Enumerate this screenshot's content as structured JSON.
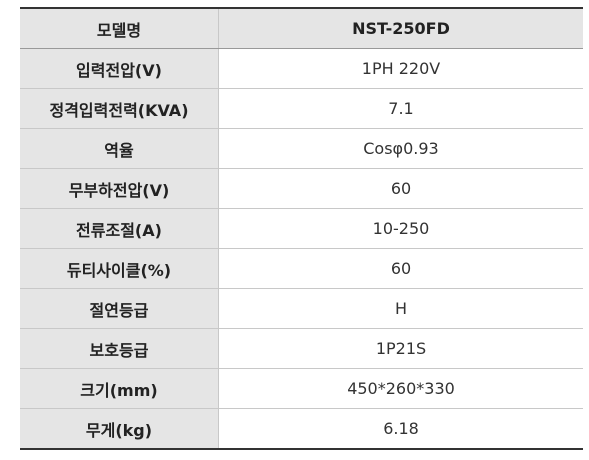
{
  "table": {
    "header": [
      "모델명",
      "NST-250FD"
    ],
    "rows": [
      [
        "입력전압(V)",
        "1PH 220V"
      ],
      [
        "정격입력전력(KVA)",
        "7.1"
      ],
      [
        "역율",
        "Cosφ0.93"
      ],
      [
        "무부하전압(V)",
        "60"
      ],
      [
        "전류조절(A)",
        "10-250"
      ],
      [
        "듀티사이클(%)",
        "60"
      ],
      [
        "절연등급",
        "H"
      ],
      [
        "보호등급",
        "1P21S"
      ],
      [
        "크기(mm)",
        "450*260*330"
      ],
      [
        "무게(kg)",
        "6.18"
      ]
    ]
  }
}
